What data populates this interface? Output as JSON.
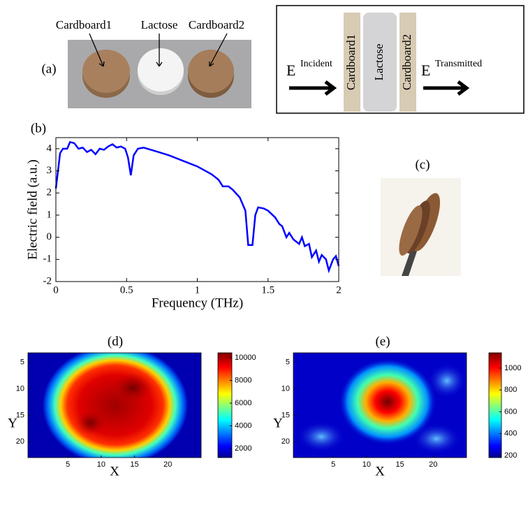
{
  "figure": {
    "panel_labels": [
      "(a)",
      "(b)",
      "(c)",
      "(d)",
      "(e)"
    ],
    "photo_labels": [
      "Cardboard1",
      "Lactose",
      "Cardboard2"
    ],
    "diagram": {
      "incident": {
        "symbol": "E",
        "subscript": "Incident"
      },
      "layers": [
        "Cardboard1",
        "Lactose",
        "Cardboard2"
      ],
      "transmitted": {
        "symbol": "E",
        "subscript": "Transmitted"
      }
    }
  },
  "chart_data": [
    {
      "type": "line",
      "xlabel": "Frequency (THz)",
      "ylabel": "Electric field (a.u.)",
      "x": [
        0,
        0.03,
        0.05,
        0.08,
        0.1,
        0.13,
        0.16,
        0.19,
        0.22,
        0.25,
        0.28,
        0.31,
        0.34,
        0.37,
        0.4,
        0.43,
        0.46,
        0.49,
        0.51,
        0.53,
        0.55,
        0.58,
        0.62,
        0.7,
        0.8,
        0.9,
        1.0,
        1.1,
        1.15,
        1.18,
        1.22,
        1.25,
        1.3,
        1.34,
        1.36,
        1.39,
        1.41,
        1.43,
        1.47,
        1.5,
        1.55,
        1.58,
        1.6,
        1.63,
        1.65,
        1.68,
        1.72,
        1.74,
        1.76,
        1.79,
        1.81,
        1.84,
        1.86,
        1.88,
        1.91,
        1.93,
        1.96,
        1.98,
        2.0
      ],
      "series": [
        {
          "name": "Electric field",
          "color": "#0000ff",
          "values": [
            2.2,
            3.8,
            4.0,
            4.0,
            4.3,
            4.25,
            4.0,
            4.05,
            3.85,
            3.95,
            3.75,
            4.0,
            3.95,
            4.1,
            4.2,
            4.05,
            4.1,
            4.0,
            3.6,
            2.8,
            3.7,
            4.0,
            4.05,
            3.9,
            3.7,
            3.45,
            3.2,
            2.85,
            2.6,
            2.3,
            2.3,
            2.15,
            1.8,
            1.2,
            -0.35,
            -0.35,
            1.0,
            1.35,
            1.3,
            1.2,
            0.9,
            0.6,
            0.5,
            0.0,
            0.2,
            -0.1,
            -0.3,
            0.0,
            -0.4,
            -0.3,
            -0.9,
            -0.6,
            -1.1,
            -0.8,
            -1.0,
            -1.5,
            -1.0,
            -0.85,
            -1.3
          ]
        }
      ],
      "xlim": [
        0,
        2
      ],
      "ylim": [
        -2,
        4.5
      ],
      "xticks": [
        0,
        0.5,
        1,
        1.5,
        2
      ],
      "yticks": [
        -2,
        -1,
        0,
        1,
        2,
        3,
        4
      ]
    },
    {
      "type": "heatmap",
      "xlabel": "X",
      "ylabel": "Y",
      "xlim": [
        -1,
        25
      ],
      "ylim": [
        3.2,
        23
      ],
      "xticks": [
        5,
        10,
        15,
        20
      ],
      "yticks": [
        5,
        10,
        15,
        20
      ],
      "colorbar": {
        "clim": [
          1200,
          10430
        ],
        "ticks": [
          2000,
          4000,
          6000,
          8000,
          10000
        ]
      }
    },
    {
      "type": "heatmap",
      "xlabel": "X",
      "ylabel": "Y",
      "xlim": [
        -1,
        25
      ],
      "ylim": [
        3.2,
        23
      ],
      "xticks": [
        5,
        10,
        15,
        20
      ],
      "yticks": [
        5,
        10,
        15,
        20
      ],
      "colorbar": {
        "clim": [
          180,
          1140
        ],
        "ticks": [
          200,
          400,
          600,
          800,
          1000
        ]
      }
    }
  ]
}
